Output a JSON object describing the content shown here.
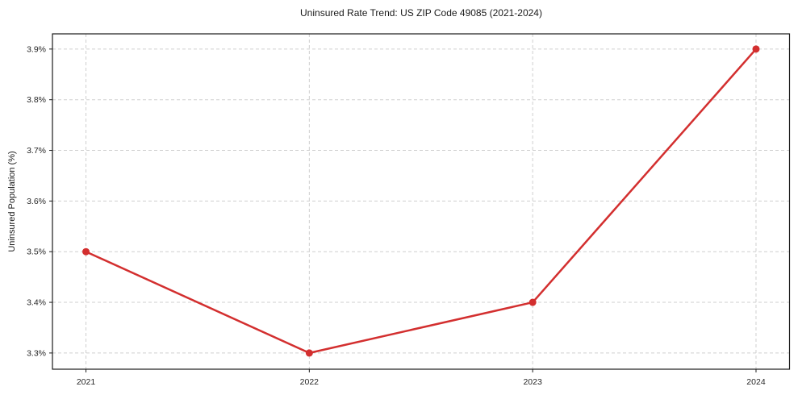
{
  "chart_data": {
    "type": "line",
    "title": "Uninsured Rate Trend: US ZIP Code 49085 (2021-2024)",
    "xlabel": "",
    "ylabel": "Uninsured Population (%)",
    "x": [
      2021,
      2022,
      2023,
      2024
    ],
    "x_tick_labels": [
      "2021",
      "2022",
      "2023",
      "2024"
    ],
    "series": [
      {
        "name": "Uninsured rate",
        "values": [
          3.5,
          3.3,
          3.4,
          3.9
        ]
      }
    ],
    "y_ticks": [
      3.3,
      3.4,
      3.5,
      3.6,
      3.7,
      3.8,
      3.9
    ],
    "y_tick_labels": [
      "3.3%",
      "3.4%",
      "3.5%",
      "3.6%",
      "3.7%",
      "3.8%",
      "3.9%"
    ],
    "xlim": [
      2020.85,
      2024.15
    ],
    "ylim": [
      3.268,
      3.93
    ],
    "grid": "dashed",
    "legend_position": "none",
    "colors": {
      "line": "#d32f2f",
      "marker": "#d32f2f",
      "grid": "#cfcfcf",
      "spine": "#1a1a1a",
      "text": "#262626"
    }
  }
}
